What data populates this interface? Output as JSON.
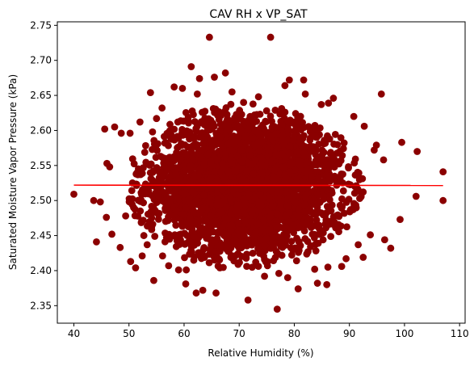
{
  "chart_data": {
    "type": "scatter",
    "title": "CAV RH x VP_SAT",
    "xlabel": "Relative Humidity (%)",
    "ylabel": "Saturated Moisture Vapor Pressure (kPa)",
    "xlim": [
      37,
      111
    ],
    "ylim": [
      2.325,
      2.755
    ],
    "x_ticks": [
      40,
      50,
      60,
      70,
      80,
      90,
      100,
      110
    ],
    "y_ticks": [
      2.35,
      2.4,
      2.45,
      2.5,
      2.55,
      2.6,
      2.65,
      2.7,
      2.75
    ],
    "x_tick_labels": [
      "40",
      "50",
      "60",
      "70",
      "80",
      "90",
      "100",
      "110"
    ],
    "y_tick_labels": [
      "2.35",
      "2.40",
      "2.45",
      "2.50",
      "2.55",
      "2.60",
      "2.65",
      "2.70",
      "2.75"
    ],
    "grid": false,
    "legend": "none",
    "colors": {
      "points": "#8b0000",
      "fit_line": "#ff0000"
    },
    "series": [
      {
        "type": "scatter",
        "x": [
          40.0,
          43.6,
          44.1,
          44.8,
          45.9,
          46.5,
          46.9,
          48.4,
          49.4,
          50.3,
          51.2,
          52.0,
          52.7,
          53.9,
          54.5,
          56.1,
          57.2,
          58.2,
          59.0,
          60.3,
          61.3,
          62.2,
          64.6,
          62.8,
          63.4,
          67.5,
          71.6,
          75.7,
          76.9,
          79.1,
          80.7,
          82.0,
          84.2,
          85.9,
          86.2,
          88.6,
          90.8,
          92.5,
          94.5,
          95.8,
          96.4,
          97.5,
          99.2,
          99.5,
          102.1,
          102.3,
          107.0,
          107.0,
          48.6,
          47.4,
          45.6,
          46.0,
          50.2,
          56.0,
          78.3,
          70.8,
          65.5,
          68.7,
          73.5,
          81.7,
          87.1,
          84.9,
          92.7,
          94.9,
          96.2,
          55.0,
          59.7,
          62.4,
          66.5,
          74.6,
          77.2,
          83.7,
          89.4,
          52.4,
          53.3,
          60.4,
          65.8,
          78.8,
          86.1,
          91.6,
          93.8
        ],
        "y": [
          2.509,
          2.5,
          2.441,
          2.498,
          2.476,
          2.548,
          2.452,
          2.433,
          2.478,
          2.413,
          2.404,
          2.612,
          2.45,
          2.654,
          2.386,
          2.421,
          2.407,
          2.662,
          2.401,
          2.381,
          2.691,
          2.368,
          2.733,
          2.674,
          2.372,
          2.682,
          2.358,
          2.733,
          2.345,
          2.672,
          2.374,
          2.652,
          2.382,
          2.38,
          2.639,
          2.406,
          2.62,
          2.419,
          2.572,
          2.652,
          2.444,
          2.432,
          2.473,
          2.583,
          2.506,
          2.57,
          2.541,
          2.5,
          2.596,
          2.605,
          2.602,
          2.553,
          2.596,
          2.632,
          2.664,
          2.64,
          2.676,
          2.655,
          2.648,
          2.672,
          2.646,
          2.637,
          2.606,
          2.579,
          2.558,
          2.617,
          2.66,
          2.652,
          2.404,
          2.392,
          2.396,
          2.402,
          2.417,
          2.421,
          2.437,
          2.401,
          2.368,
          2.39,
          2.405,
          2.437,
          2.451
        ]
      },
      {
        "type": "line",
        "name": "",
        "x": [
          40.0,
          107.0
        ],
        "y": [
          2.522,
          2.5215
        ]
      }
    ],
    "dense_cloud": {
      "x_center": 71.0,
      "x_spread": 9.0,
      "y_center": 2.522,
      "y_spread": 0.05,
      "point_count": 3500
    }
  }
}
